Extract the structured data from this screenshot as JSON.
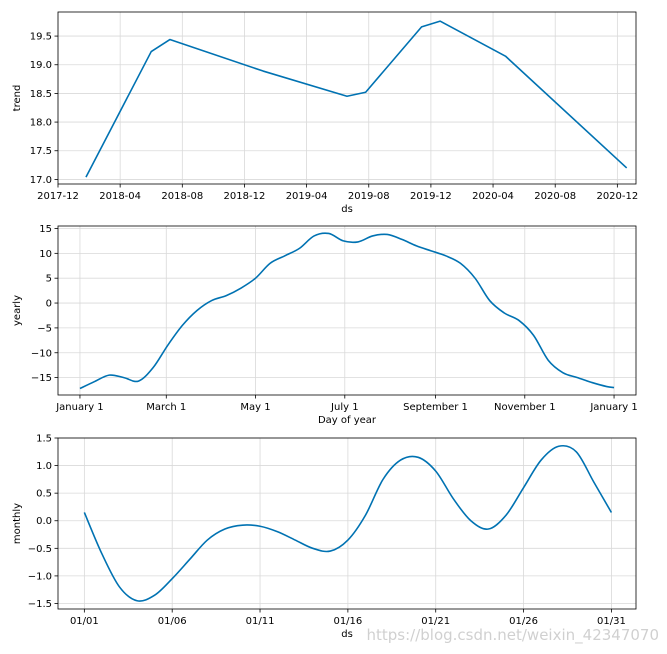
{
  "colors": {
    "line": "#0072b2",
    "grid": "#d9d9d9",
    "axis": "#000000"
  },
  "watermark": "https://blog.csdn.net/weixin_42347070",
  "chart_data": [
    {
      "type": "line",
      "ylabel": "trend",
      "xlabel": "ds",
      "xlim": [
        0,
        3.1
      ],
      "ylim": [
        16.92,
        19.92
      ],
      "xticks": [
        0,
        0.3333,
        0.6667,
        1.0,
        1.3333,
        1.6667,
        2.0,
        2.3333,
        2.6667,
        3.0
      ],
      "xtick_labels": [
        "2017-12",
        "2018-04",
        "2018-08",
        "2018-12",
        "2019-04",
        "2019-08",
        "2019-12",
        "2020-04",
        "2020-08",
        "2020-12"
      ],
      "yticks": [
        17.0,
        17.5,
        18.0,
        18.5,
        19.0,
        19.5
      ],
      "ytick_labels": [
        "17.0",
        "17.5",
        "18.0",
        "18.5",
        "19.0",
        "19.5"
      ],
      "grid": true,
      "x": [
        0.15,
        0.5,
        0.6,
        1.1,
        1.55,
        1.65,
        1.95,
        2.05,
        2.4,
        3.05
      ],
      "y": [
        17.04,
        19.23,
        19.44,
        18.89,
        18.45,
        18.52,
        19.66,
        19.76,
        19.15,
        17.2
      ]
    },
    {
      "type": "line",
      "ylabel": "yearly",
      "xlabel": "Day of year",
      "xlim": [
        -15,
        380
      ],
      "ylim": [
        -18.5,
        15.5
      ],
      "xticks": [
        0,
        59,
        120,
        181,
        243,
        304,
        365
      ],
      "xtick_labels": [
        "January 1",
        "March 1",
        "May 1",
        "July 1",
        "September 1",
        "November 1",
        "January 1"
      ],
      "yticks": [
        -15,
        -10,
        -5,
        0,
        5,
        10,
        15
      ],
      "ytick_labels": [
        "−15",
        "−10",
        "−5",
        "0",
        "5",
        "10",
        "15"
      ],
      "grid": true,
      "x": [
        0,
        10,
        20,
        30,
        40,
        50,
        60,
        70,
        80,
        90,
        100,
        110,
        120,
        130,
        140,
        150,
        160,
        170,
        180,
        190,
        200,
        210,
        220,
        230,
        240,
        250,
        260,
        270,
        280,
        290,
        300,
        310,
        320,
        330,
        340,
        350,
        360,
        365
      ],
      "y": [
        -17.2,
        -15.8,
        -14.5,
        -15.0,
        -15.7,
        -13.0,
        -8.5,
        -4.5,
        -1.5,
        0.5,
        1.5,
        3.0,
        5.0,
        8.0,
        9.5,
        11.0,
        13.5,
        14.0,
        12.5,
        12.3,
        13.5,
        13.8,
        12.8,
        11.5,
        10.5,
        9.5,
        8.0,
        5.0,
        0.5,
        -2.0,
        -3.5,
        -6.5,
        -11.5,
        -14.0,
        -15.0,
        -16.0,
        -16.8,
        -17.0
      ]
    },
    {
      "type": "line",
      "ylabel": "monthly",
      "xlabel": "ds",
      "xlim": [
        -1.5,
        31.4
      ],
      "ylim": [
        -1.6,
        1.5
      ],
      "xticks": [
        0,
        5,
        10,
        15,
        20,
        25,
        30
      ],
      "xtick_labels": [
        "01/01",
        "01/06",
        "01/11",
        "01/16",
        "01/21",
        "01/26",
        "01/31"
      ],
      "yticks": [
        -1.5,
        -1.0,
        -0.5,
        0.0,
        0.5,
        1.0,
        1.5
      ],
      "ytick_labels": [
        "−1.5",
        "−1.0",
        "−0.5",
        "0.0",
        "0.5",
        "1.0",
        "1.5"
      ],
      "grid": true,
      "x": [
        0,
        1,
        2,
        3,
        4,
        5,
        6,
        7,
        8,
        9,
        10,
        11,
        12,
        13,
        14,
        15,
        16,
        17,
        18,
        19,
        20,
        21,
        22,
        23,
        24,
        25,
        26,
        27,
        28,
        29,
        30
      ],
      "y": [
        0.15,
        -0.6,
        -1.2,
        -1.45,
        -1.35,
        -1.05,
        -0.7,
        -0.35,
        -0.15,
        -0.08,
        -0.1,
        -0.2,
        -0.35,
        -0.5,
        -0.55,
        -0.35,
        0.1,
        0.75,
        1.1,
        1.15,
        0.9,
        0.4,
        0.0,
        -0.15,
        0.1,
        0.6,
        1.1,
        1.35,
        1.25,
        0.7,
        0.15
      ]
    }
  ]
}
